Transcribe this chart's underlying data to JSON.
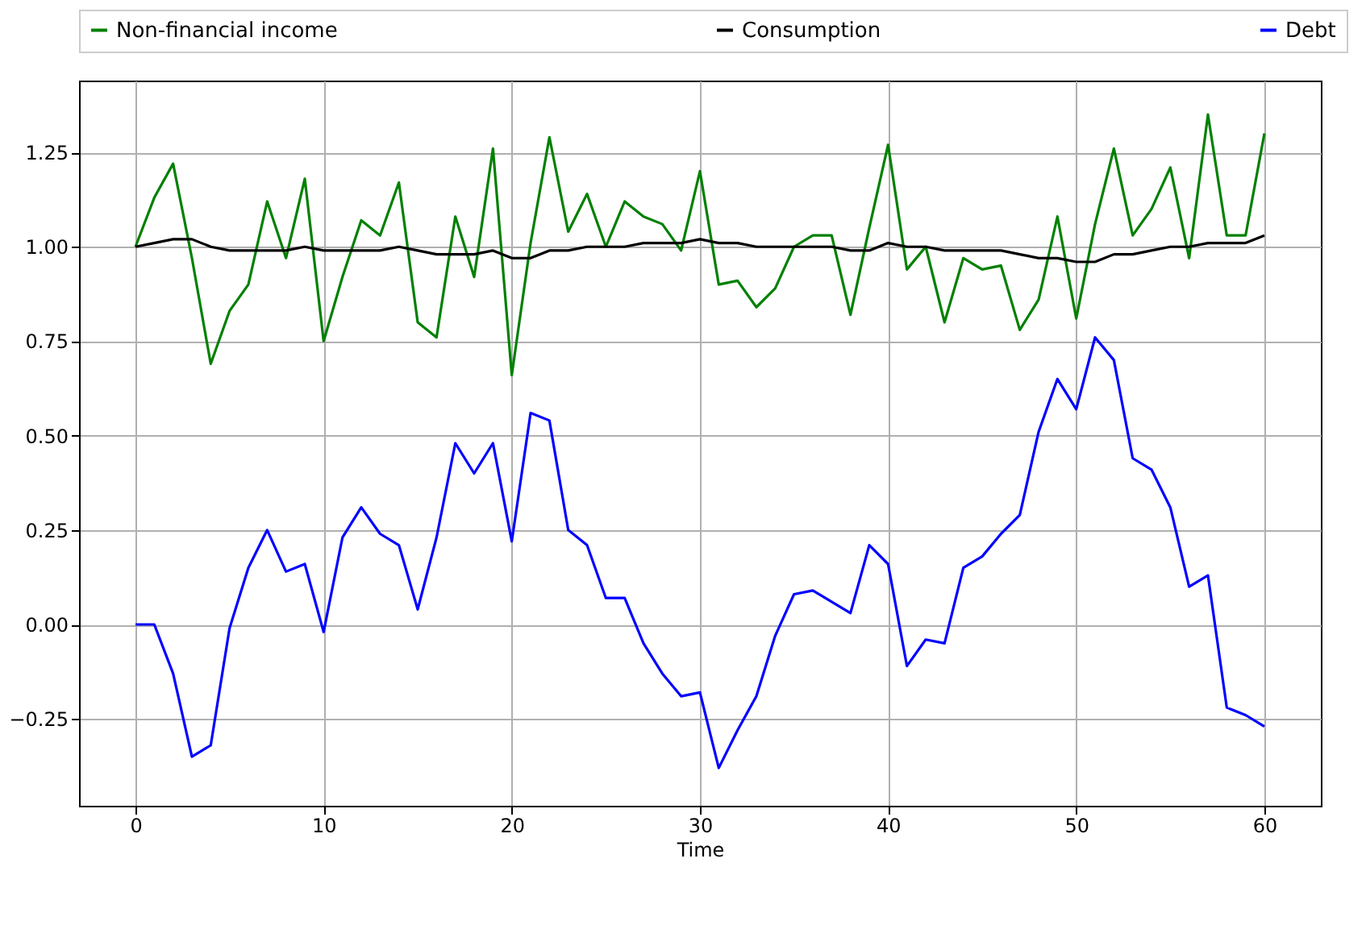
{
  "chart_data": {
    "type": "line",
    "xlabel": "Time",
    "x": [
      0,
      1,
      2,
      3,
      4,
      5,
      6,
      7,
      8,
      9,
      10,
      11,
      12,
      13,
      14,
      15,
      16,
      17,
      18,
      19,
      20,
      21,
      22,
      23,
      24,
      25,
      26,
      27,
      28,
      29,
      30,
      31,
      32,
      33,
      34,
      35,
      36,
      37,
      38,
      39,
      40,
      41,
      42,
      43,
      44,
      45,
      46,
      47,
      48,
      49,
      50,
      51,
      52,
      53,
      54,
      55,
      56,
      57,
      58,
      59,
      60
    ],
    "series": [
      {
        "name": "Non-financial income",
        "color": "#008000",
        "values": [
          1.0,
          1.13,
          1.22,
          0.97,
          0.69,
          0.83,
          0.9,
          1.12,
          0.97,
          1.18,
          0.75,
          0.92,
          1.07,
          1.03,
          1.17,
          0.8,
          0.76,
          1.08,
          0.92,
          1.26,
          0.66,
          1.01,
          1.29,
          1.04,
          1.14,
          1.0,
          1.12,
          1.08,
          1.06,
          0.99,
          1.2,
          0.9,
          0.91,
          0.84,
          0.89,
          1.0,
          1.03,
          1.03,
          0.82,
          1.05,
          1.27,
          0.94,
          1.0,
          0.8,
          0.97,
          0.94,
          0.95,
          0.78,
          0.86,
          1.08,
          0.81,
          1.06,
          1.26,
          1.03,
          1.1,
          1.21,
          0.97,
          1.35,
          1.03,
          1.03,
          1.3
        ]
      },
      {
        "name": "Consumption",
        "color": "#000000",
        "values": [
          1.0,
          1.01,
          1.02,
          1.02,
          1.0,
          0.99,
          0.99,
          0.99,
          0.99,
          1.0,
          0.99,
          0.99,
          0.99,
          0.99,
          1.0,
          0.99,
          0.98,
          0.98,
          0.98,
          0.99,
          0.97,
          0.97,
          0.99,
          0.99,
          1.0,
          1.0,
          1.0,
          1.01,
          1.01,
          1.01,
          1.02,
          1.01,
          1.01,
          1.0,
          1.0,
          1.0,
          1.0,
          1.0,
          0.99,
          0.99,
          1.01,
          1.0,
          1.0,
          0.99,
          0.99,
          0.99,
          0.99,
          0.98,
          0.97,
          0.97,
          0.96,
          0.96,
          0.98,
          0.98,
          0.99,
          1.0,
          1.0,
          1.01,
          1.01,
          1.01,
          1.03
        ]
      },
      {
        "name": "Debt",
        "color": "#0000ff",
        "values": [
          0.0,
          0.0,
          -0.13,
          -0.35,
          -0.32,
          -0.01,
          0.15,
          0.25,
          0.14,
          0.16,
          -0.02,
          0.23,
          0.31,
          0.24,
          0.21,
          0.04,
          0.23,
          0.48,
          0.4,
          0.48,
          0.22,
          0.56,
          0.54,
          0.25,
          0.21,
          0.07,
          0.07,
          -0.05,
          -0.13,
          -0.19,
          -0.18,
          -0.38,
          -0.28,
          -0.19,
          -0.03,
          0.08,
          0.09,
          0.06,
          0.03,
          0.21,
          0.16,
          -0.11,
          -0.04,
          -0.05,
          0.15,
          0.18,
          0.24,
          0.29,
          0.51,
          0.65,
          0.57,
          0.76,
          0.7,
          0.44,
          0.41,
          0.31,
          0.1,
          0.13,
          -0.22,
          -0.24,
          -0.27
        ]
      }
    ],
    "xlim": [
      -3,
      63
    ],
    "xticks": [
      0,
      10,
      20,
      30,
      40,
      50,
      60
    ],
    "ylim": [
      -0.48,
      1.44
    ],
    "yticks": [
      {
        "value": -0.25,
        "label": "−0.25"
      },
      {
        "value": 0,
        "label": "0.00"
      },
      {
        "value": 0.25,
        "label": "0.25"
      },
      {
        "value": 0.5,
        "label": "0.50"
      },
      {
        "value": 0.75,
        "label": "0.75"
      },
      {
        "value": 1,
        "label": "1.00"
      },
      {
        "value": 1.25,
        "label": "1.25"
      }
    ],
    "grid": true,
    "legend": "top",
    "marker": "none",
    "line_style": "solid"
  }
}
